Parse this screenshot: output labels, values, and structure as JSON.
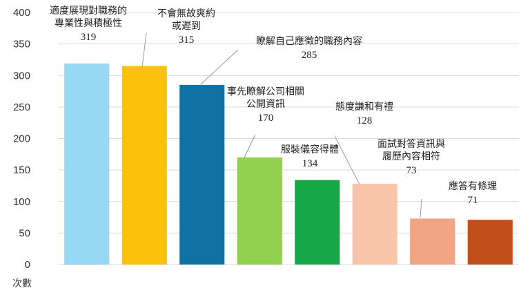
{
  "chart_data": {
    "type": "bar",
    "ylabel": "次數",
    "ylim": [
      0,
      400
    ],
    "yticks": [
      0,
      50,
      100,
      150,
      200,
      250,
      300,
      350,
      400
    ],
    "grid": true,
    "categories": [
      [
        "適度展現對職務的",
        "專業性與積極性"
      ],
      [
        "不會無故爽約",
        "或遲到"
      ],
      [
        "瞭解自己應徵的職務內容"
      ],
      [
        "事先瞭解公司相關",
        "公開資訊"
      ],
      [
        "服裝儀容得體"
      ],
      [
        "態度謙和有禮"
      ],
      [
        "面試對答資訊與",
        "履歷內容相符"
      ],
      [
        "應答有條理"
      ]
    ],
    "values": [
      319,
      315,
      285,
      170,
      134,
      128,
      73,
      71
    ],
    "colors": [
      "#97d9f3",
      "#fcc10d",
      "#0f72a2",
      "#92d050",
      "#18a84a",
      "#f8c5ab",
      "#f1a584",
      "#c24f19"
    ]
  }
}
